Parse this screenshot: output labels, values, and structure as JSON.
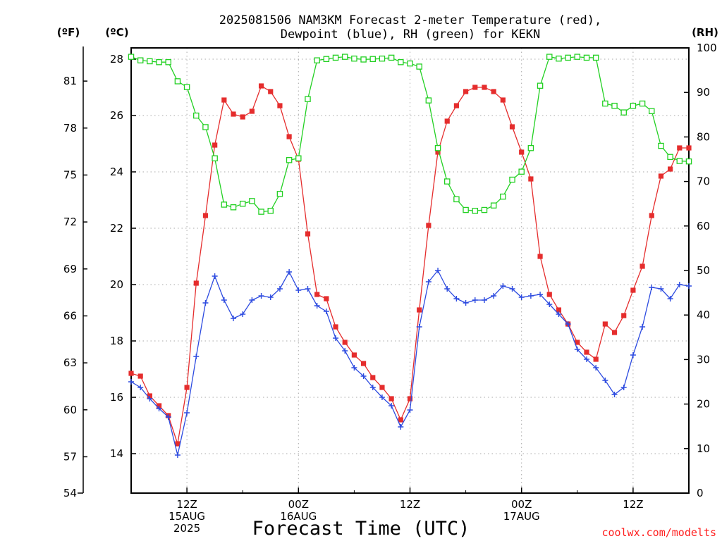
{
  "chart_data": {
    "type": "line",
    "title_line1": "2025081506 NAM3KM Forecast 2-meter Temperature (red),",
    "title_line2": "Dewpoint (blue), RH (green) for KEKN",
    "xlabel": "Forecast Time (UTC)",
    "units": {
      "fahrenheit": "(ºF)",
      "celsius": "(ºC)",
      "rh": "(RH)"
    },
    "x_unit": "hours since 2025-08-15 00Z",
    "xlim": [
      6,
      66
    ],
    "celsius_axis": {
      "ylim": [
        12.6,
        28.4
      ],
      "ticks": [
        14,
        16,
        18,
        20,
        22,
        24,
        26,
        28
      ]
    },
    "fahrenheit_axis": {
      "ylim": [
        54.68,
        83.12
      ],
      "ticks": [
        54,
        57,
        60,
        63,
        66,
        69,
        72,
        75,
        78,
        81
      ]
    },
    "rh_axis": {
      "ylim": [
        0,
        100
      ],
      "ticks": [
        0,
        10,
        20,
        30,
        40,
        50,
        60,
        70,
        80,
        90,
        100
      ]
    },
    "x_ticks": [
      {
        "x": 12,
        "line1": "12Z",
        "line2": "15AUG",
        "line3": "2025"
      },
      {
        "x": 24,
        "line1": "00Z",
        "line2": "16AUG",
        "line3": ""
      },
      {
        "x": 36,
        "line1": "12Z",
        "line2": "",
        "line3": ""
      },
      {
        "x": 48,
        "line1": "00Z",
        "line2": "17AUG",
        "line3": ""
      },
      {
        "x": 60,
        "line1": "12Z",
        "line2": "",
        "line3": ""
      }
    ],
    "x": [
      6,
      7,
      8,
      9,
      10,
      11,
      12,
      13,
      14,
      15,
      16,
      17,
      18,
      19,
      20,
      21,
      22,
      23,
      24,
      25,
      26,
      27,
      28,
      29,
      30,
      31,
      32,
      33,
      34,
      35,
      36,
      37,
      38,
      39,
      40,
      41,
      42,
      43,
      44,
      45,
      46,
      47,
      48,
      49,
      50,
      51,
      52,
      53,
      54,
      55,
      56,
      57,
      58,
      59,
      60,
      61,
      62,
      63,
      64,
      65,
      66
    ],
    "grid": true,
    "series": [
      {
        "name": "Temperature",
        "axis": "celsius",
        "color": "#e52d2d",
        "marker": "filled-square",
        "values": [
          16.85,
          16.75,
          16.05,
          15.7,
          15.35,
          14.35,
          16.35,
          20.05,
          22.45,
          24.95,
          26.55,
          26.05,
          25.95,
          26.15,
          27.05,
          26.85,
          26.35,
          25.25,
          24.45,
          21.8,
          19.65,
          19.5,
          18.5,
          17.95,
          17.5,
          17.2,
          16.7,
          16.35,
          15.95,
          15.2,
          15.95,
          19.1,
          22.1,
          24.7,
          25.8,
          26.35,
          26.85,
          27.0,
          27.0,
          26.85,
          26.55,
          25.6,
          24.7,
          23.75,
          21.0,
          19.65,
          19.1,
          18.6,
          17.95,
          17.6,
          17.35,
          18.6,
          18.3,
          18.9,
          19.8,
          20.65,
          22.45,
          23.85,
          24.1,
          24.85,
          24.85
        ]
      },
      {
        "name": "Dewpoint",
        "axis": "celsius",
        "color": "#2d4be0",
        "marker": "plus",
        "values": [
          16.55,
          16.35,
          15.95,
          15.6,
          15.3,
          13.95,
          15.45,
          17.45,
          19.35,
          20.3,
          19.45,
          18.8,
          18.95,
          19.45,
          19.6,
          19.55,
          19.85,
          20.45,
          19.8,
          19.85,
          19.25,
          19.05,
          18.1,
          17.65,
          17.05,
          16.75,
          16.35,
          16.0,
          15.7,
          14.95,
          15.55,
          18.5,
          20.1,
          20.5,
          19.85,
          19.5,
          19.35,
          19.45,
          19.45,
          19.6,
          19.95,
          19.85,
          19.55,
          19.6,
          19.65,
          19.3,
          18.95,
          18.6,
          17.7,
          17.35,
          17.05,
          16.6,
          16.1,
          16.35,
          17.5,
          18.5,
          19.9,
          19.85,
          19.5,
          20.0,
          19.95
        ]
      },
      {
        "name": "RH",
        "axis": "rh",
        "color": "#22d022",
        "marker": "open-square",
        "values": [
          98.0,
          97.2,
          97.0,
          96.8,
          96.8,
          92.5,
          91.2,
          84.8,
          82.2,
          75.2,
          64.8,
          64.2,
          65.0,
          65.6,
          63.2,
          63.4,
          67.2,
          74.8,
          75.2,
          88.5,
          97.2,
          97.5,
          97.8,
          98.0,
          97.6,
          97.4,
          97.5,
          97.6,
          97.8,
          96.8,
          96.5,
          95.8,
          88.2,
          77.5,
          70.0,
          66.0,
          63.6,
          63.4,
          63.6,
          64.6,
          66.6,
          70.4,
          72.2,
          77.5,
          91.5,
          98.0,
          97.6,
          97.8,
          98.0,
          97.8,
          97.8,
          87.5,
          87.0,
          85.5,
          87.0,
          87.5,
          85.8,
          78.0,
          75.5,
          74.6,
          74.5
        ]
      }
    ]
  },
  "credit": "coolwx.com/modelts"
}
